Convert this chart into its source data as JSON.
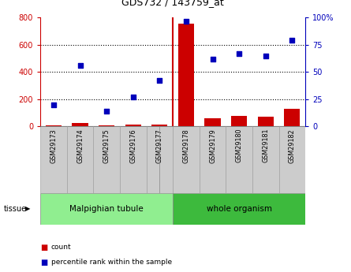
{
  "title": "GDS732 / 143759_at",
  "samples": [
    "GSM29173",
    "GSM29174",
    "GSM29175",
    "GSM29176",
    "GSM29177",
    "GSM29178",
    "GSM29179",
    "GSM29180",
    "GSM29181",
    "GSM29182"
  ],
  "count": [
    10,
    28,
    8,
    12,
    12,
    755,
    62,
    78,
    72,
    128
  ],
  "percentile": [
    20,
    56,
    14,
    27,
    42,
    97,
    62,
    67,
    65,
    79
  ],
  "tissue_groups": [
    {
      "label": "Malpighian tubule",
      "start": 0,
      "end": 5,
      "color": "#90ee90"
    },
    {
      "label": "whole organism",
      "start": 5,
      "end": 10,
      "color": "#3dba3d"
    }
  ],
  "bar_color": "#cc0000",
  "dot_color": "#0000bb",
  "left_axis_color": "#cc0000",
  "right_axis_color": "#0000bb",
  "ylim_left": [
    0,
    800
  ],
  "ylim_right": [
    0,
    100
  ],
  "yticks_left": [
    0,
    200,
    400,
    600,
    800
  ],
  "ytick_labels_left": [
    "0",
    "200",
    "400",
    "600",
    "800"
  ],
  "yticks_right": [
    0,
    25,
    50,
    75,
    100
  ],
  "ytick_labels_right": [
    "0",
    "25",
    "50",
    "75",
    "100%"
  ],
  "grid_dotted_values": [
    200,
    400,
    600
  ],
  "background_color": "#ffffff",
  "tissue_label": "tissue",
  "legend_count_label": "count",
  "legend_percentile_label": "percentile rank within the sample",
  "sample_box_color": "#cccccc",
  "plot_area_bg": "#ffffff",
  "sep_color": "#cc0000"
}
